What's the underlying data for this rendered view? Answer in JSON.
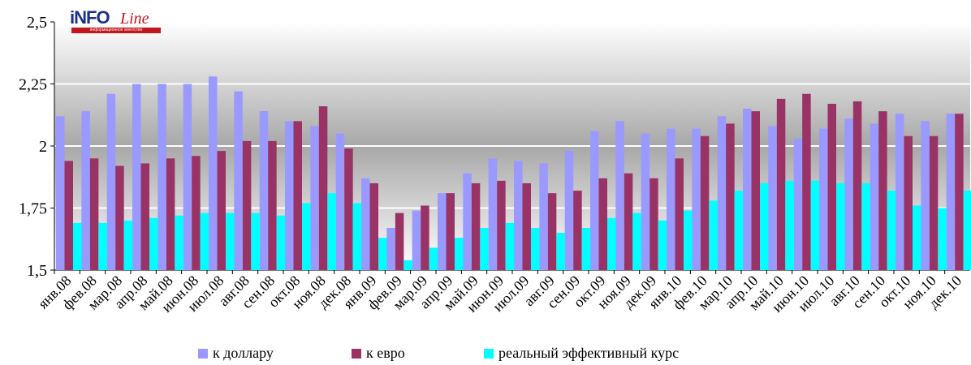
{
  "logo": {
    "brand": "iNFO",
    "script": "Line",
    "tagline": "информационное агентство"
  },
  "colors": {
    "dollar": "#9999FF",
    "euro": "#993366",
    "effective": "#00FFFF"
  },
  "chart_data": {
    "type": "bar",
    "title": "",
    "xlabel": "",
    "ylabel": "",
    "ylim": [
      1.5,
      2.5
    ],
    "yticks": [
      "1,5",
      "1,75",
      "2",
      "2,25",
      "2,5"
    ],
    "ytick_values": [
      1.5,
      1.75,
      2.0,
      2.25,
      2.5
    ],
    "grid": true,
    "legend": "bottom",
    "categories": [
      "янв.08",
      "фев.08",
      "мар.08",
      "апр.08",
      "май.08",
      "июн.08",
      "июл.08",
      "авг.08",
      "сен.08",
      "окт.08",
      "ноя.08",
      "дек.08",
      "янв.09",
      "фев.09",
      "мар.09",
      "апр.09",
      "май.09",
      "июн.09",
      "июл.09",
      "авг.09",
      "сен.09",
      "окт.09",
      "ноя.09",
      "дек.09",
      "янв.10",
      "фев.10",
      "мар.10",
      "апр.10",
      "май.10",
      "июн.10",
      "июл.10",
      "авг.10",
      "сен.10",
      "окт.10",
      "ноя.10",
      "дек.10"
    ],
    "series": [
      {
        "name": "к доллару",
        "color": "#9999FF",
        "values": [
          2.12,
          2.14,
          2.21,
          2.25,
          2.25,
          2.25,
          2.28,
          2.22,
          2.14,
          2.1,
          2.08,
          2.05,
          1.87,
          1.67,
          1.74,
          1.81,
          1.89,
          1.95,
          1.94,
          1.93,
          1.98,
          2.06,
          2.1,
          2.05,
          2.07,
          2.07,
          2.12,
          2.15,
          2.08,
          2.03,
          2.07,
          2.11,
          2.09,
          2.13,
          2.1,
          2.13
        ]
      },
      {
        "name": "к евро",
        "color": "#993366",
        "values": [
          1.94,
          1.95,
          1.92,
          1.93,
          1.95,
          1.96,
          1.98,
          2.02,
          2.02,
          2.1,
          2.16,
          1.99,
          1.85,
          1.73,
          1.76,
          1.81,
          1.85,
          1.86,
          1.85,
          1.81,
          1.82,
          1.87,
          1.89,
          1.87,
          1.95,
          2.04,
          2.09,
          2.14,
          2.19,
          2.21,
          2.17,
          2.18,
          2.14,
          2.04,
          2.04,
          2.13
        ]
      },
      {
        "name": "реальный эффективный курс",
        "color": "#00FFFF",
        "values": [
          1.69,
          1.69,
          1.7,
          1.71,
          1.72,
          1.73,
          1.73,
          1.73,
          1.72,
          1.77,
          1.81,
          1.77,
          1.63,
          1.54,
          1.59,
          1.63,
          1.67,
          1.69,
          1.67,
          1.65,
          1.67,
          1.71,
          1.73,
          1.7,
          1.74,
          1.78,
          1.82,
          1.85,
          1.86,
          1.86,
          1.85,
          1.85,
          1.82,
          1.76,
          1.75,
          1.82
        ]
      }
    ]
  }
}
